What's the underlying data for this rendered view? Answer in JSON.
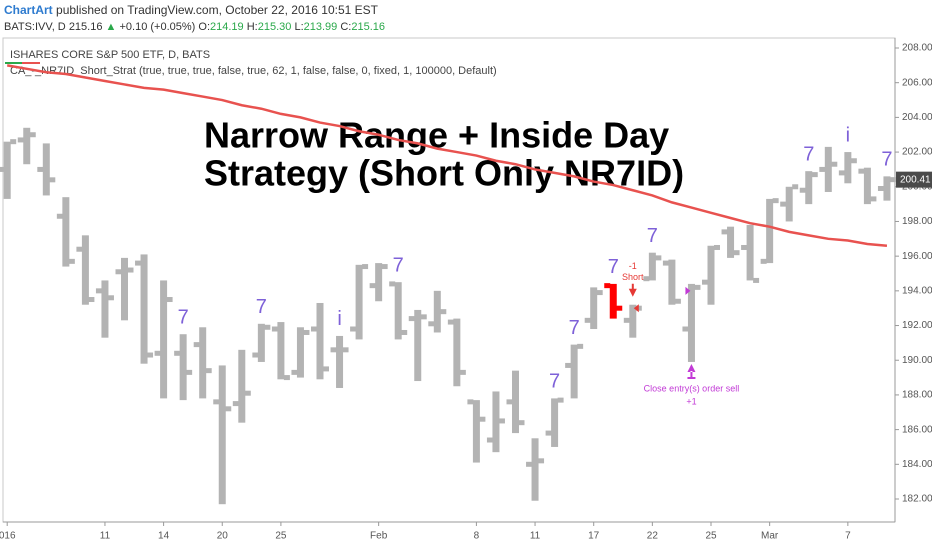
{
  "header": {
    "author": "ChartArt",
    "published": "published on TradingView.com, October 22, 2016 10:51 EST",
    "symbol": "BATS:IVV, D",
    "price": "215.16",
    "change_arrow": "▲",
    "change": "+0.10 (+0.05%)",
    "ohlc": [
      {
        "label": "O:",
        "value": "214.19"
      },
      {
        "label": "H:",
        "value": "215.30"
      },
      {
        "label": "L:",
        "value": "213.99"
      },
      {
        "label": "C:",
        "value": "215.16"
      }
    ]
  },
  "chart_data": {
    "type": "ohlc",
    "title": "ISHARES CORE S&P 500 ETF, D, BATS",
    "study": "CA_-_NR7ID_Short_Strat (true, true, true, false, true, 62, 1, false, false, 0, fixed, 1, 100000, Default)",
    "annotation": [
      "Narrow Range + Inside Day",
      "Strategy (Short Only NR7ID)"
    ],
    "categories": [
      "016",
      null,
      null,
      null,
      null,
      "11",
      null,
      null,
      "14",
      null,
      null,
      "20",
      null,
      null,
      "25",
      null,
      null,
      null,
      null,
      "Feb",
      null,
      null,
      null,
      null,
      "8",
      null,
      null,
      "11",
      null,
      null,
      "17",
      null,
      null,
      "22",
      null,
      null,
      "25",
      null,
      null,
      "Mar",
      null,
      null,
      null,
      "7",
      null,
      null
    ],
    "open": [
      201.0,
      202.7,
      201.0,
      198.3,
      196.4,
      194.0,
      195.1,
      195.6,
      190.4,
      190.4,
      190.9,
      187.6,
      187.5,
      190.3,
      191.8,
      189.3,
      191.8,
      190.6,
      191.8,
      194.3,
      194.4,
      192.4,
      192.1,
      192.2,
      187.6,
      185.4,
      187.6,
      184.0,
      185.8,
      189.7,
      192.3,
      194.3,
      192.3,
      194.7,
      195.6,
      191.8,
      194.5,
      197.4,
      196.5,
      195.7,
      199.0,
      199.8,
      201.0,
      200.8,
      200.9,
      199.9
    ],
    "high": [
      202.6,
      203.4,
      202.5,
      199.4,
      197.2,
      194.6,
      195.9,
      196.1,
      194.6,
      191.5,
      191.9,
      189.7,
      190.6,
      192.1,
      192.2,
      191.9,
      193.3,
      191.4,
      195.5,
      195.6,
      194.5,
      192.9,
      194.0,
      192.4,
      187.7,
      188.2,
      189.4,
      185.5,
      187.8,
      190.9,
      194.2,
      194.4,
      193.2,
      196.2,
      195.8,
      194.4,
      196.6,
      197.7,
      197.8,
      199.3,
      200.0,
      200.9,
      202.3,
      202.0,
      201.1,
      200.6
    ],
    "low": [
      199.3,
      201.3,
      199.5,
      195.4,
      193.2,
      191.3,
      192.3,
      189.8,
      187.8,
      187.7,
      187.8,
      181.7,
      186.4,
      189.9,
      188.9,
      189.0,
      188.9,
      188.4,
      191.2,
      193.4,
      191.2,
      188.8,
      191.6,
      188.5,
      184.1,
      184.7,
      185.8,
      181.9,
      185.0,
      187.8,
      191.8,
      192.4,
      191.3,
      194.6,
      193.2,
      189.9,
      193.2,
      195.9,
      194.6,
      195.6,
      198.0,
      199.0,
      199.7,
      200.2,
      199.0,
      199.2
    ],
    "close": [
      202.6,
      203.0,
      200.4,
      195.7,
      193.5,
      193.6,
      195.2,
      190.3,
      193.5,
      189.3,
      189.4,
      187.2,
      188.1,
      191.9,
      189.0,
      191.6,
      189.5,
      190.6,
      195.4,
      195.4,
      191.6,
      192.5,
      192.8,
      189.3,
      186.6,
      186.5,
      186.4,
      184.2,
      187.7,
      190.8,
      193.9,
      193.0,
      193.0,
      195.9,
      193.4,
      194.2,
      196.5,
      196.2,
      194.6,
      199.2,
      200.0,
      200.7,
      201.3,
      201.5,
      199.3,
      200.41
    ],
    "bar_colors": [
      "#b3b3b3",
      "#b3b3b3",
      "#b3b3b3",
      "#b3b3b3",
      "#b3b3b3",
      "#b3b3b3",
      "#b3b3b3",
      "#b3b3b3",
      "#b3b3b3",
      "#b3b3b3",
      "#b3b3b3",
      "#b3b3b3",
      "#b3b3b3",
      "#b3b3b3",
      "#b3b3b3",
      "#b3b3b3",
      "#b3b3b3",
      "#b3b3b3",
      "#b3b3b3",
      "#b3b3b3",
      "#b3b3b3",
      "#b3b3b3",
      "#b3b3b3",
      "#b3b3b3",
      "#b3b3b3",
      "#b3b3b3",
      "#b3b3b3",
      "#b3b3b3",
      "#b3b3b3",
      "#b3b3b3",
      "#b3b3b3",
      "#ff0000",
      "#b3b3b3",
      "#b3b3b3",
      "#b3b3b3",
      "#b3b3b3",
      "#b3b3b3",
      "#b3b3b3",
      "#b3b3b3",
      "#b3b3b3",
      "#b3b3b3",
      "#b3b3b3",
      "#b3b3b3",
      "#b3b3b3",
      "#b3b3b3",
      "#b3b3b3"
    ],
    "moving_average": {
      "color": "#e8524f",
      "values": [
        207.0,
        206.8,
        206.6,
        206.5,
        206.3,
        206.1,
        205.9,
        205.7,
        205.6,
        205.4,
        205.2,
        205.0,
        204.7,
        204.5,
        204.2,
        204.0,
        203.7,
        203.5,
        203.2,
        203.0,
        202.7,
        202.5,
        202.2,
        202.0,
        201.8,
        201.5,
        201.3,
        201.0,
        200.8,
        200.6,
        200.3,
        200.1,
        199.8,
        199.5,
        199.1,
        198.8,
        198.5,
        198.2,
        197.9,
        197.7,
        197.4,
        197.2,
        197.0,
        196.9,
        196.7,
        196.6
      ]
    },
    "signals": [
      null,
      null,
      null,
      null,
      null,
      null,
      null,
      null,
      null,
      "7",
      null,
      null,
      null,
      "7",
      null,
      null,
      null,
      "i",
      null,
      null,
      "7",
      null,
      null,
      null,
      null,
      null,
      null,
      null,
      "7",
      "7",
      null,
      "7",
      null,
      "7",
      null,
      null,
      null,
      null,
      null,
      null,
      null,
      "7",
      null,
      "i",
      null,
      "7"
    ],
    "signal_color": "#7e61d8",
    "orders": [
      {
        "bar": "Feb 19",
        "text": "Short",
        "qty": "-1",
        "color": "#e53935"
      },
      {
        "bar": "Feb 24",
        "text": "Close entry(s) order sell",
        "qty": "+1",
        "color": "#c23ad6"
      }
    ],
    "last_price": {
      "value": 200.41,
      "label": "200.41"
    },
    "ylim": [
      182,
      208
    ],
    "yticks": [
      {
        "value": 182,
        "label": "182.00"
      },
      {
        "value": 184,
        "label": "184.00"
      },
      {
        "value": 186,
        "label": "186.00"
      },
      {
        "value": 188,
        "label": "188.00"
      },
      {
        "value": 190,
        "label": "190.00"
      },
      {
        "value": 192,
        "label": "192.00"
      },
      {
        "value": 194,
        "label": "194.00"
      },
      {
        "value": 196,
        "label": "196.00"
      },
      {
        "value": 198,
        "label": "198.00"
      },
      {
        "value": 200,
        "label": "200.00"
      },
      {
        "value": 202,
        "label": "202.00"
      },
      {
        "value": 204,
        "label": "204.00"
      },
      {
        "value": 206,
        "label": "206.00"
      },
      {
        "value": 208,
        "label": "208.00"
      }
    ]
  }
}
